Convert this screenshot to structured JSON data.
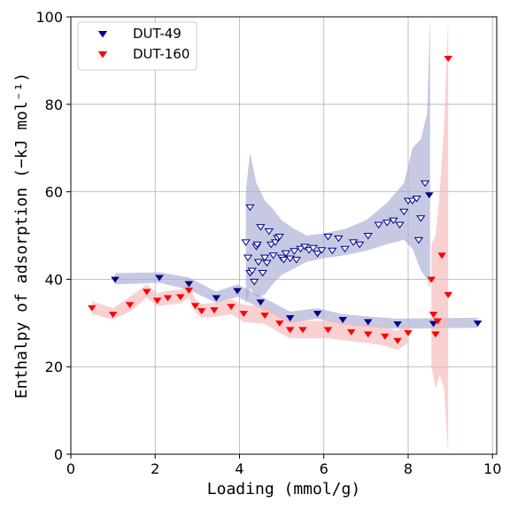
{
  "chart_data": {
    "type": "scatter",
    "title": "",
    "xlabel": "Loading (mmol/g)",
    "ylabel": "Enthalpy of adsorption (−kJ mol⁻¹)",
    "xlim": [
      0,
      10.1
    ],
    "ylim": [
      0,
      100
    ],
    "xticks": [
      "0",
      "2",
      "4",
      "6",
      "8",
      "10"
    ],
    "yticks": [
      "0",
      "20",
      "40",
      "60",
      "80",
      "100"
    ],
    "grid": true,
    "legend_position": "top-left",
    "series": [
      {
        "name": "DUT-49",
        "color": "#00008b",
        "band_color": "#a9acd4",
        "marker": "filled-down-triangle",
        "points": [
          [
            1.05,
            40.0
          ],
          [
            2.1,
            40.4
          ],
          [
            2.8,
            39.0
          ],
          [
            3.45,
            35.8
          ],
          [
            3.95,
            37.4
          ],
          [
            4.5,
            34.8
          ],
          [
            5.2,
            31.2
          ],
          [
            5.85,
            32.2
          ],
          [
            6.45,
            30.8
          ],
          [
            7.05,
            30.3
          ],
          [
            7.75,
            29.8
          ],
          [
            8.6,
            29.9
          ],
          [
            9.65,
            30.0
          ],
          [
            8.5,
            59.3
          ]
        ],
        "band": [
          [
            1.05,
            38.8,
            41.4
          ],
          [
            2.1,
            39.2,
            41.6
          ],
          [
            2.8,
            37.6,
            40.4
          ],
          [
            3.45,
            34.6,
            37.2
          ],
          [
            3.95,
            36.0,
            38.8
          ],
          [
            4.5,
            33.4,
            36.2
          ],
          [
            5.2,
            30.0,
            32.6
          ],
          [
            5.85,
            31.0,
            33.4
          ],
          [
            6.45,
            29.6,
            32.0
          ],
          [
            7.05,
            29.1,
            31.5
          ],
          [
            7.75,
            28.7,
            31.0
          ],
          [
            8.6,
            28.8,
            31.1
          ],
          [
            9.65,
            28.9,
            31.2
          ]
        ]
      },
      {
        "name": "DUT-49",
        "color": "#00008b",
        "band_color": "#a9acd4",
        "marker": "hollow-down-triangle",
        "points": [
          [
            4.15,
            48.5
          ],
          [
            4.2,
            45.0
          ],
          [
            4.25,
            41.5
          ],
          [
            4.25,
            56.5
          ],
          [
            4.3,
            42.0
          ],
          [
            4.35,
            39.5
          ],
          [
            4.4,
            47.5
          ],
          [
            4.42,
            48.0
          ],
          [
            4.45,
            44.0
          ],
          [
            4.5,
            52.0
          ],
          [
            4.55,
            41.5
          ],
          [
            4.6,
            45.0
          ],
          [
            4.65,
            43.8
          ],
          [
            4.7,
            51.0
          ],
          [
            4.75,
            48.0
          ],
          [
            4.8,
            45.5
          ],
          [
            4.85,
            48.5
          ],
          [
            4.9,
            49.5
          ],
          [
            4.95,
            49.8
          ],
          [
            5.0,
            45.0
          ],
          [
            5.05,
            44.5
          ],
          [
            5.1,
            46.0
          ],
          [
            5.2,
            44.8
          ],
          [
            5.3,
            46.5
          ],
          [
            5.35,
            44.5
          ],
          [
            5.45,
            47.0
          ],
          [
            5.55,
            47.5
          ],
          [
            5.65,
            46.7
          ],
          [
            5.75,
            47.2
          ],
          [
            5.85,
            45.9
          ],
          [
            5.95,
            46.7
          ],
          [
            6.1,
            49.8
          ],
          [
            6.2,
            46.6
          ],
          [
            6.35,
            49.4
          ],
          [
            6.5,
            47.0
          ],
          [
            6.7,
            48.5
          ],
          [
            6.85,
            48.0
          ],
          [
            7.05,
            50.0
          ],
          [
            7.3,
            52.5
          ],
          [
            7.5,
            53.0
          ],
          [
            7.65,
            53.5
          ],
          [
            7.8,
            52.5
          ],
          [
            7.9,
            55.5
          ],
          [
            8.0,
            58.0
          ],
          [
            8.1,
            58.0
          ],
          [
            8.2,
            58.5
          ],
          [
            8.25,
            49.0
          ],
          [
            8.3,
            54.0
          ],
          [
            8.4,
            62.0
          ]
        ],
        "band": [
          [
            4.15,
            34.0,
            60.0
          ],
          [
            4.25,
            38.0,
            69.0
          ],
          [
            4.4,
            36.0,
            62.0
          ],
          [
            4.6,
            36.5,
            58.0
          ],
          [
            4.8,
            39.0,
            56.0
          ],
          [
            5.0,
            41.0,
            53.5
          ],
          [
            5.3,
            42.5,
            51.5
          ],
          [
            5.6,
            44.0,
            50.0
          ],
          [
            6.0,
            44.8,
            50.5
          ],
          [
            6.5,
            45.5,
            51.5
          ],
          [
            7.0,
            46.5,
            53.5
          ],
          [
            7.5,
            48.0,
            57.5
          ],
          [
            7.9,
            49.0,
            62.0
          ],
          [
            8.1,
            47.0,
            70.0
          ],
          [
            8.3,
            42.0,
            72.0
          ],
          [
            8.45,
            40.0,
            78.0
          ],
          [
            8.52,
            38.0,
            100.0
          ]
        ]
      },
      {
        "name": "DUT-160",
        "color": "#ff0000",
        "band_color": "#f7b8b8",
        "marker": "filled-down-triangle",
        "points": [
          [
            0.5,
            33.5
          ],
          [
            1.0,
            32.0
          ],
          [
            1.4,
            34.2
          ],
          [
            1.8,
            37.2
          ],
          [
            2.05,
            35.2
          ],
          [
            2.3,
            35.8
          ],
          [
            2.6,
            36.0
          ],
          [
            2.8,
            37.5
          ],
          [
            2.95,
            34.0
          ],
          [
            3.1,
            32.8
          ],
          [
            3.4,
            33.0
          ],
          [
            3.8,
            33.8
          ],
          [
            4.1,
            32.2
          ],
          [
            4.6,
            31.8
          ],
          [
            4.95,
            30.0
          ],
          [
            5.2,
            28.5
          ],
          [
            5.5,
            28.5
          ],
          [
            6.1,
            28.5
          ],
          [
            6.65,
            28.0
          ],
          [
            7.05,
            27.5
          ],
          [
            7.45,
            27.0
          ],
          [
            7.75,
            26.0
          ],
          [
            8.0,
            27.8
          ],
          [
            8.55,
            40.0
          ],
          [
            8.6,
            32.0
          ],
          [
            8.65,
            27.5
          ],
          [
            8.7,
            30.5
          ],
          [
            8.8,
            45.5
          ],
          [
            8.95,
            36.5
          ],
          [
            8.95,
            90.5
          ]
        ],
        "band": [
          [
            0.5,
            32.0,
            35.0
          ],
          [
            1.0,
            30.8,
            33.4
          ],
          [
            1.4,
            32.5,
            36.0
          ],
          [
            1.8,
            35.8,
            38.8
          ],
          [
            2.05,
            33.8,
            36.8
          ],
          [
            2.3,
            34.2,
            37.4
          ],
          [
            2.6,
            34.4,
            37.6
          ],
          [
            2.8,
            35.8,
            39.0
          ],
          [
            2.95,
            32.5,
            35.5
          ],
          [
            3.1,
            31.2,
            34.4
          ],
          [
            3.4,
            31.4,
            34.6
          ],
          [
            3.8,
            32.0,
            35.4
          ],
          [
            4.1,
            30.2,
            34.2
          ],
          [
            4.6,
            29.8,
            33.8
          ],
          [
            4.95,
            27.8,
            32.0
          ],
          [
            5.2,
            26.5,
            30.5
          ],
          [
            5.5,
            26.5,
            30.5
          ],
          [
            6.1,
            26.5,
            30.5
          ],
          [
            6.65,
            25.8,
            30.0
          ],
          [
            7.05,
            25.4,
            29.6
          ],
          [
            7.45,
            24.8,
            29.2
          ],
          [
            7.75,
            23.8,
            28.2
          ],
          [
            8.0,
            25.5,
            30.0
          ]
        ],
        "band2": [
          [
            8.55,
            20.0,
            48.0
          ],
          [
            8.65,
            15.0,
            50.0
          ],
          [
            8.75,
            18.0,
            60.0
          ],
          [
            8.85,
            15.0,
            75.0
          ],
          [
            8.95,
            0.0,
            100.0
          ]
        ]
      }
    ]
  }
}
